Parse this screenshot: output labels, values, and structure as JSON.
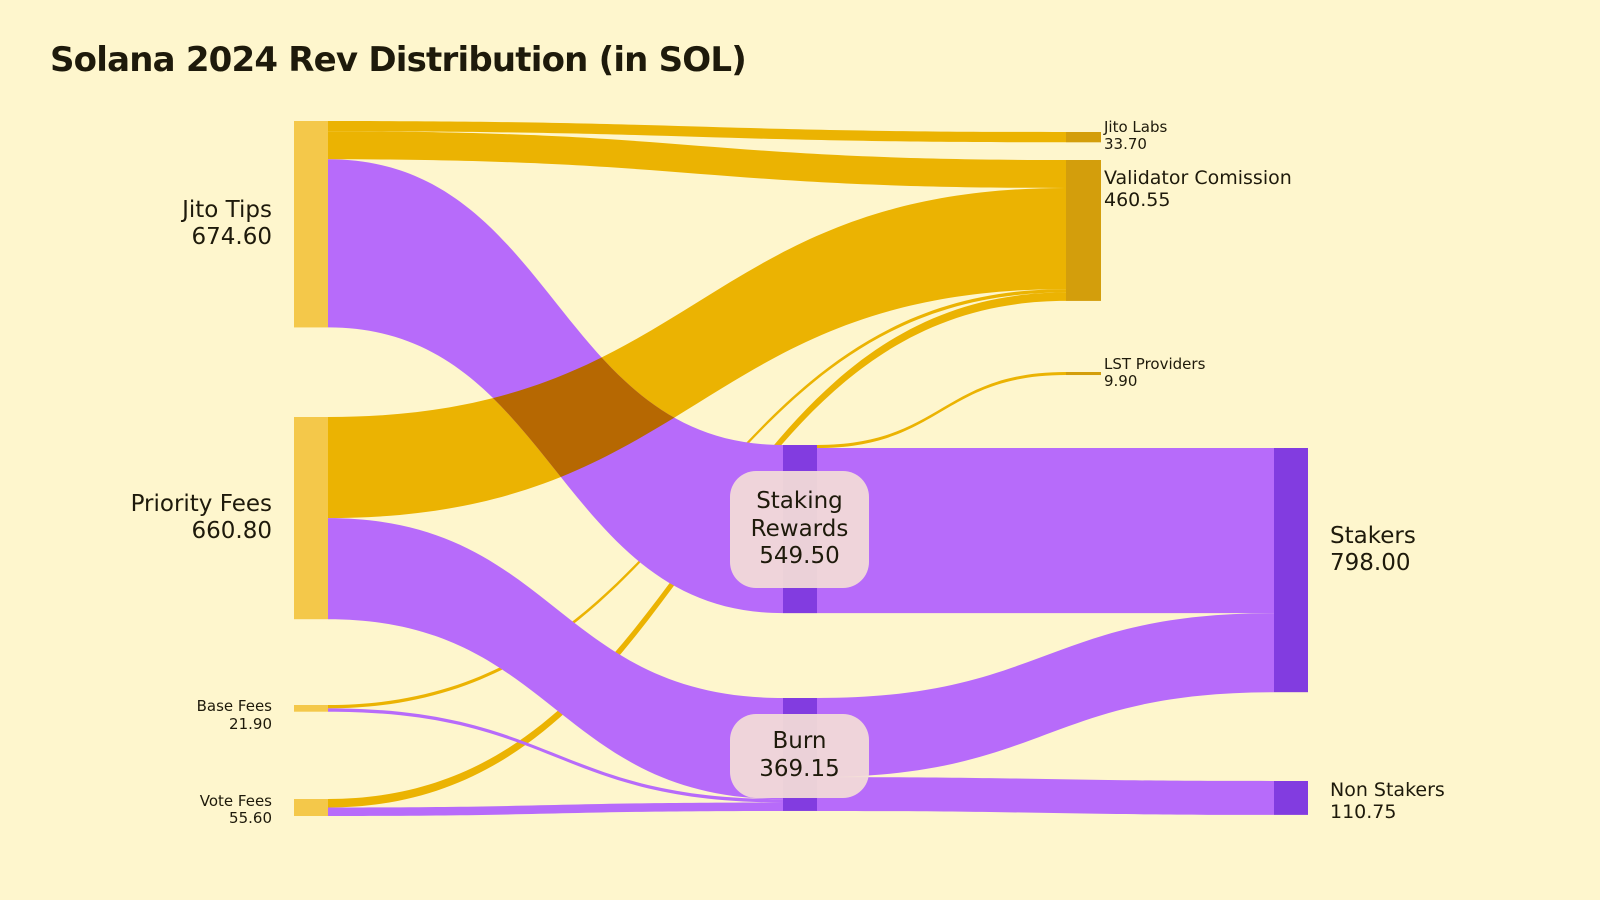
{
  "chart_data": {
    "type": "sankey",
    "title": "Solana 2024 Rev Distribution (in SOL)",
    "colors": {
      "background": "#FEF6CD",
      "gold_node": "#F4C84A",
      "gold_flow": "#EBB302",
      "gold_node_dark": "#D39E0C",
      "purple_flow": "#B76BFA",
      "purple_node": "#823CE0",
      "overlap": "#B66802"
    },
    "nodes": [
      {
        "id": "jito_tips",
        "label": "Jito Tips",
        "value_label": "674.60",
        "value": 674.6
      },
      {
        "id": "priority_fees",
        "label": "Priority Fees",
        "value_label": "660.80",
        "value": 660.8
      },
      {
        "id": "base_fees",
        "label": "Base Fees",
        "value_label": "21.90",
        "value": 21.9
      },
      {
        "id": "vote_fees",
        "label": "Vote Fees",
        "value_label": "55.60",
        "value": 55.6
      },
      {
        "id": "staking_rewards",
        "label": "Staking Rewards",
        "label_lines": [
          "Staking",
          "Rewards"
        ],
        "value_label": "549.50",
        "value": 549.5
      },
      {
        "id": "burn",
        "label": "Burn",
        "value_label": "369.15",
        "value": 369.15
      },
      {
        "id": "jito_labs",
        "label": "Jito Labs",
        "value_label": "33.70",
        "value": 33.7
      },
      {
        "id": "validator_commission",
        "label": "Validator Comission",
        "value_label": "460.55",
        "value": 460.55
      },
      {
        "id": "lst_providers",
        "label": "LST Providers",
        "value_label": "9.90",
        "value": 9.9
      },
      {
        "id": "stakers",
        "label": "Stakers",
        "value_label": "798.00",
        "value": 798.0
      },
      {
        "id": "non_stakers",
        "label": "Non Stakers",
        "value_label": "110.75",
        "value": 110.75
      }
    ],
    "links": [
      {
        "source": "jito_tips",
        "target": "jito_labs",
        "value": 33.7
      },
      {
        "source": "jito_tips",
        "target": "validator_commission",
        "value": 91.4
      },
      {
        "source": "jito_tips",
        "target": "staking_rewards",
        "value": 549.5
      },
      {
        "source": "priority_fees",
        "target": "validator_commission",
        "value": 330.4
      },
      {
        "source": "priority_fees",
        "target": "burn",
        "value": 330.4
      },
      {
        "source": "base_fees",
        "target": "validator_commission",
        "value": 10.95
      },
      {
        "source": "base_fees",
        "target": "burn",
        "value": 10.95
      },
      {
        "source": "vote_fees",
        "target": "validator_commission",
        "value": 27.8
      },
      {
        "source": "vote_fees",
        "target": "burn",
        "value": 27.8
      },
      {
        "source": "staking_rewards",
        "target": "lst_providers",
        "value": 9.9
      },
      {
        "source": "staking_rewards",
        "target": "stakers",
        "value": 539.6
      },
      {
        "source": "burn",
        "target": "stakers",
        "value": 258.4
      },
      {
        "source": "burn",
        "target": "non_stakers",
        "value": 110.75
      }
    ]
  }
}
